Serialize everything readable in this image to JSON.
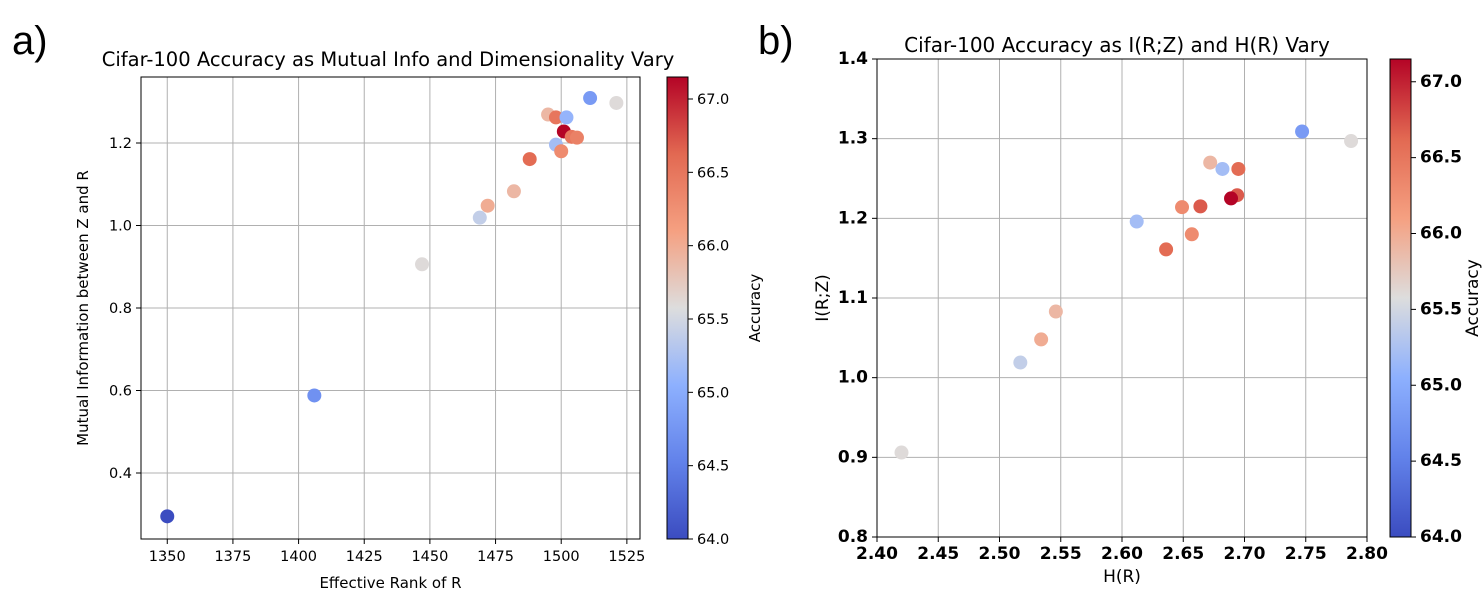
{
  "panels": [
    {
      "letter": "a)"
    },
    {
      "letter": "b)"
    }
  ],
  "chart_data": [
    {
      "type": "scatter",
      "title": "Cifar-100 Accuracy as Mutual Info and Dimensionality Vary",
      "xlabel": "Effective Rank of R",
      "ylabel": "Mutual Information between Z and R",
      "xlim": [
        1340,
        1530
      ],
      "ylim": [
        0.24,
        1.36
      ],
      "xticks": [
        "1350",
        "1375",
        "1400",
        "1425",
        "1450",
        "1475",
        "1500",
        "1525"
      ],
      "yticks": [
        "0.4",
        "0.6",
        "0.8",
        "1.0",
        "1.2"
      ],
      "grid": true,
      "colormap": "coolwarm",
      "colorbar": {
        "label": "Accuracy",
        "range": [
          64.0,
          67.15
        ],
        "ticks": [
          "64.0",
          "64.5",
          "65.0",
          "65.5",
          "66.0",
          "66.5",
          "67.0"
        ]
      },
      "points": [
        {
          "x": 1350,
          "y": 0.295,
          "c": 64.0
        },
        {
          "x": 1406,
          "y": 0.588,
          "c": 64.7
        },
        {
          "x": 1447,
          "y": 0.906,
          "c": 65.6
        },
        {
          "x": 1469,
          "y": 1.019,
          "c": 65.4
        },
        {
          "x": 1472,
          "y": 1.048,
          "c": 66.0
        },
        {
          "x": 1482,
          "y": 1.083,
          "c": 65.9
        },
        {
          "x": 1488,
          "y": 1.161,
          "c": 66.6
        },
        {
          "x": 1495,
          "y": 1.269,
          "c": 65.9
        },
        {
          "x": 1498,
          "y": 1.262,
          "c": 66.5
        },
        {
          "x": 1498,
          "y": 1.196,
          "c": 65.2
        },
        {
          "x": 1500,
          "y": 1.18,
          "c": 66.3
        },
        {
          "x": 1501,
          "y": 1.228,
          "c": 67.15
        },
        {
          "x": 1502,
          "y": 1.262,
          "c": 65.1
        },
        {
          "x": 1504,
          "y": 1.215,
          "c": 66.5
        },
        {
          "x": 1506,
          "y": 1.213,
          "c": 66.4
        },
        {
          "x": 1511,
          "y": 1.309,
          "c": 64.8
        },
        {
          "x": 1521,
          "y": 1.297,
          "c": 65.6
        }
      ]
    },
    {
      "type": "scatter",
      "title": "Cifar-100 Accuracy as I(R;Z) and H(R) Vary",
      "xlabel": "H(R)",
      "ylabel": "I(R;Z)",
      "xlim": [
        2.4,
        2.8
      ],
      "ylim": [
        0.8,
        1.4
      ],
      "xticks": [
        "2.40",
        "2.45",
        "2.50",
        "2.55",
        "2.60",
        "2.65",
        "2.70",
        "2.75",
        "2.80"
      ],
      "yticks": [
        "0.8",
        "0.9",
        "1.0",
        "1.1",
        "1.2",
        "1.3",
        "1.4"
      ],
      "grid": true,
      "colormap": "coolwarm",
      "colorbar": {
        "label": "Accuracy",
        "range": [
          64.0,
          67.15
        ],
        "ticks": [
          "64.0",
          "64.5",
          "65.0",
          "65.5",
          "66.0",
          "66.5",
          "67.0"
        ]
      },
      "points": [
        {
          "x": 2.42,
          "y": 0.906,
          "c": 65.6
        },
        {
          "x": 2.517,
          "y": 1.019,
          "c": 65.4
        },
        {
          "x": 2.534,
          "y": 1.048,
          "c": 66.0
        },
        {
          "x": 2.546,
          "y": 1.083,
          "c": 65.9
        },
        {
          "x": 2.612,
          "y": 1.196,
          "c": 65.2
        },
        {
          "x": 2.636,
          "y": 1.161,
          "c": 66.6
        },
        {
          "x": 2.649,
          "y": 1.214,
          "c": 66.3
        },
        {
          "x": 2.657,
          "y": 1.18,
          "c": 66.3
        },
        {
          "x": 2.664,
          "y": 1.215,
          "c": 66.7
        },
        {
          "x": 2.672,
          "y": 1.27,
          "c": 65.9
        },
        {
          "x": 2.682,
          "y": 1.262,
          "c": 65.2
        },
        {
          "x": 2.694,
          "y": 1.229,
          "c": 66.7
        },
        {
          "x": 2.689,
          "y": 1.225,
          "c": 67.15
        },
        {
          "x": 2.695,
          "y": 1.262,
          "c": 66.6
        },
        {
          "x": 2.747,
          "y": 1.309,
          "c": 64.8
        },
        {
          "x": 2.787,
          "y": 1.297,
          "c": 65.6
        }
      ]
    }
  ]
}
